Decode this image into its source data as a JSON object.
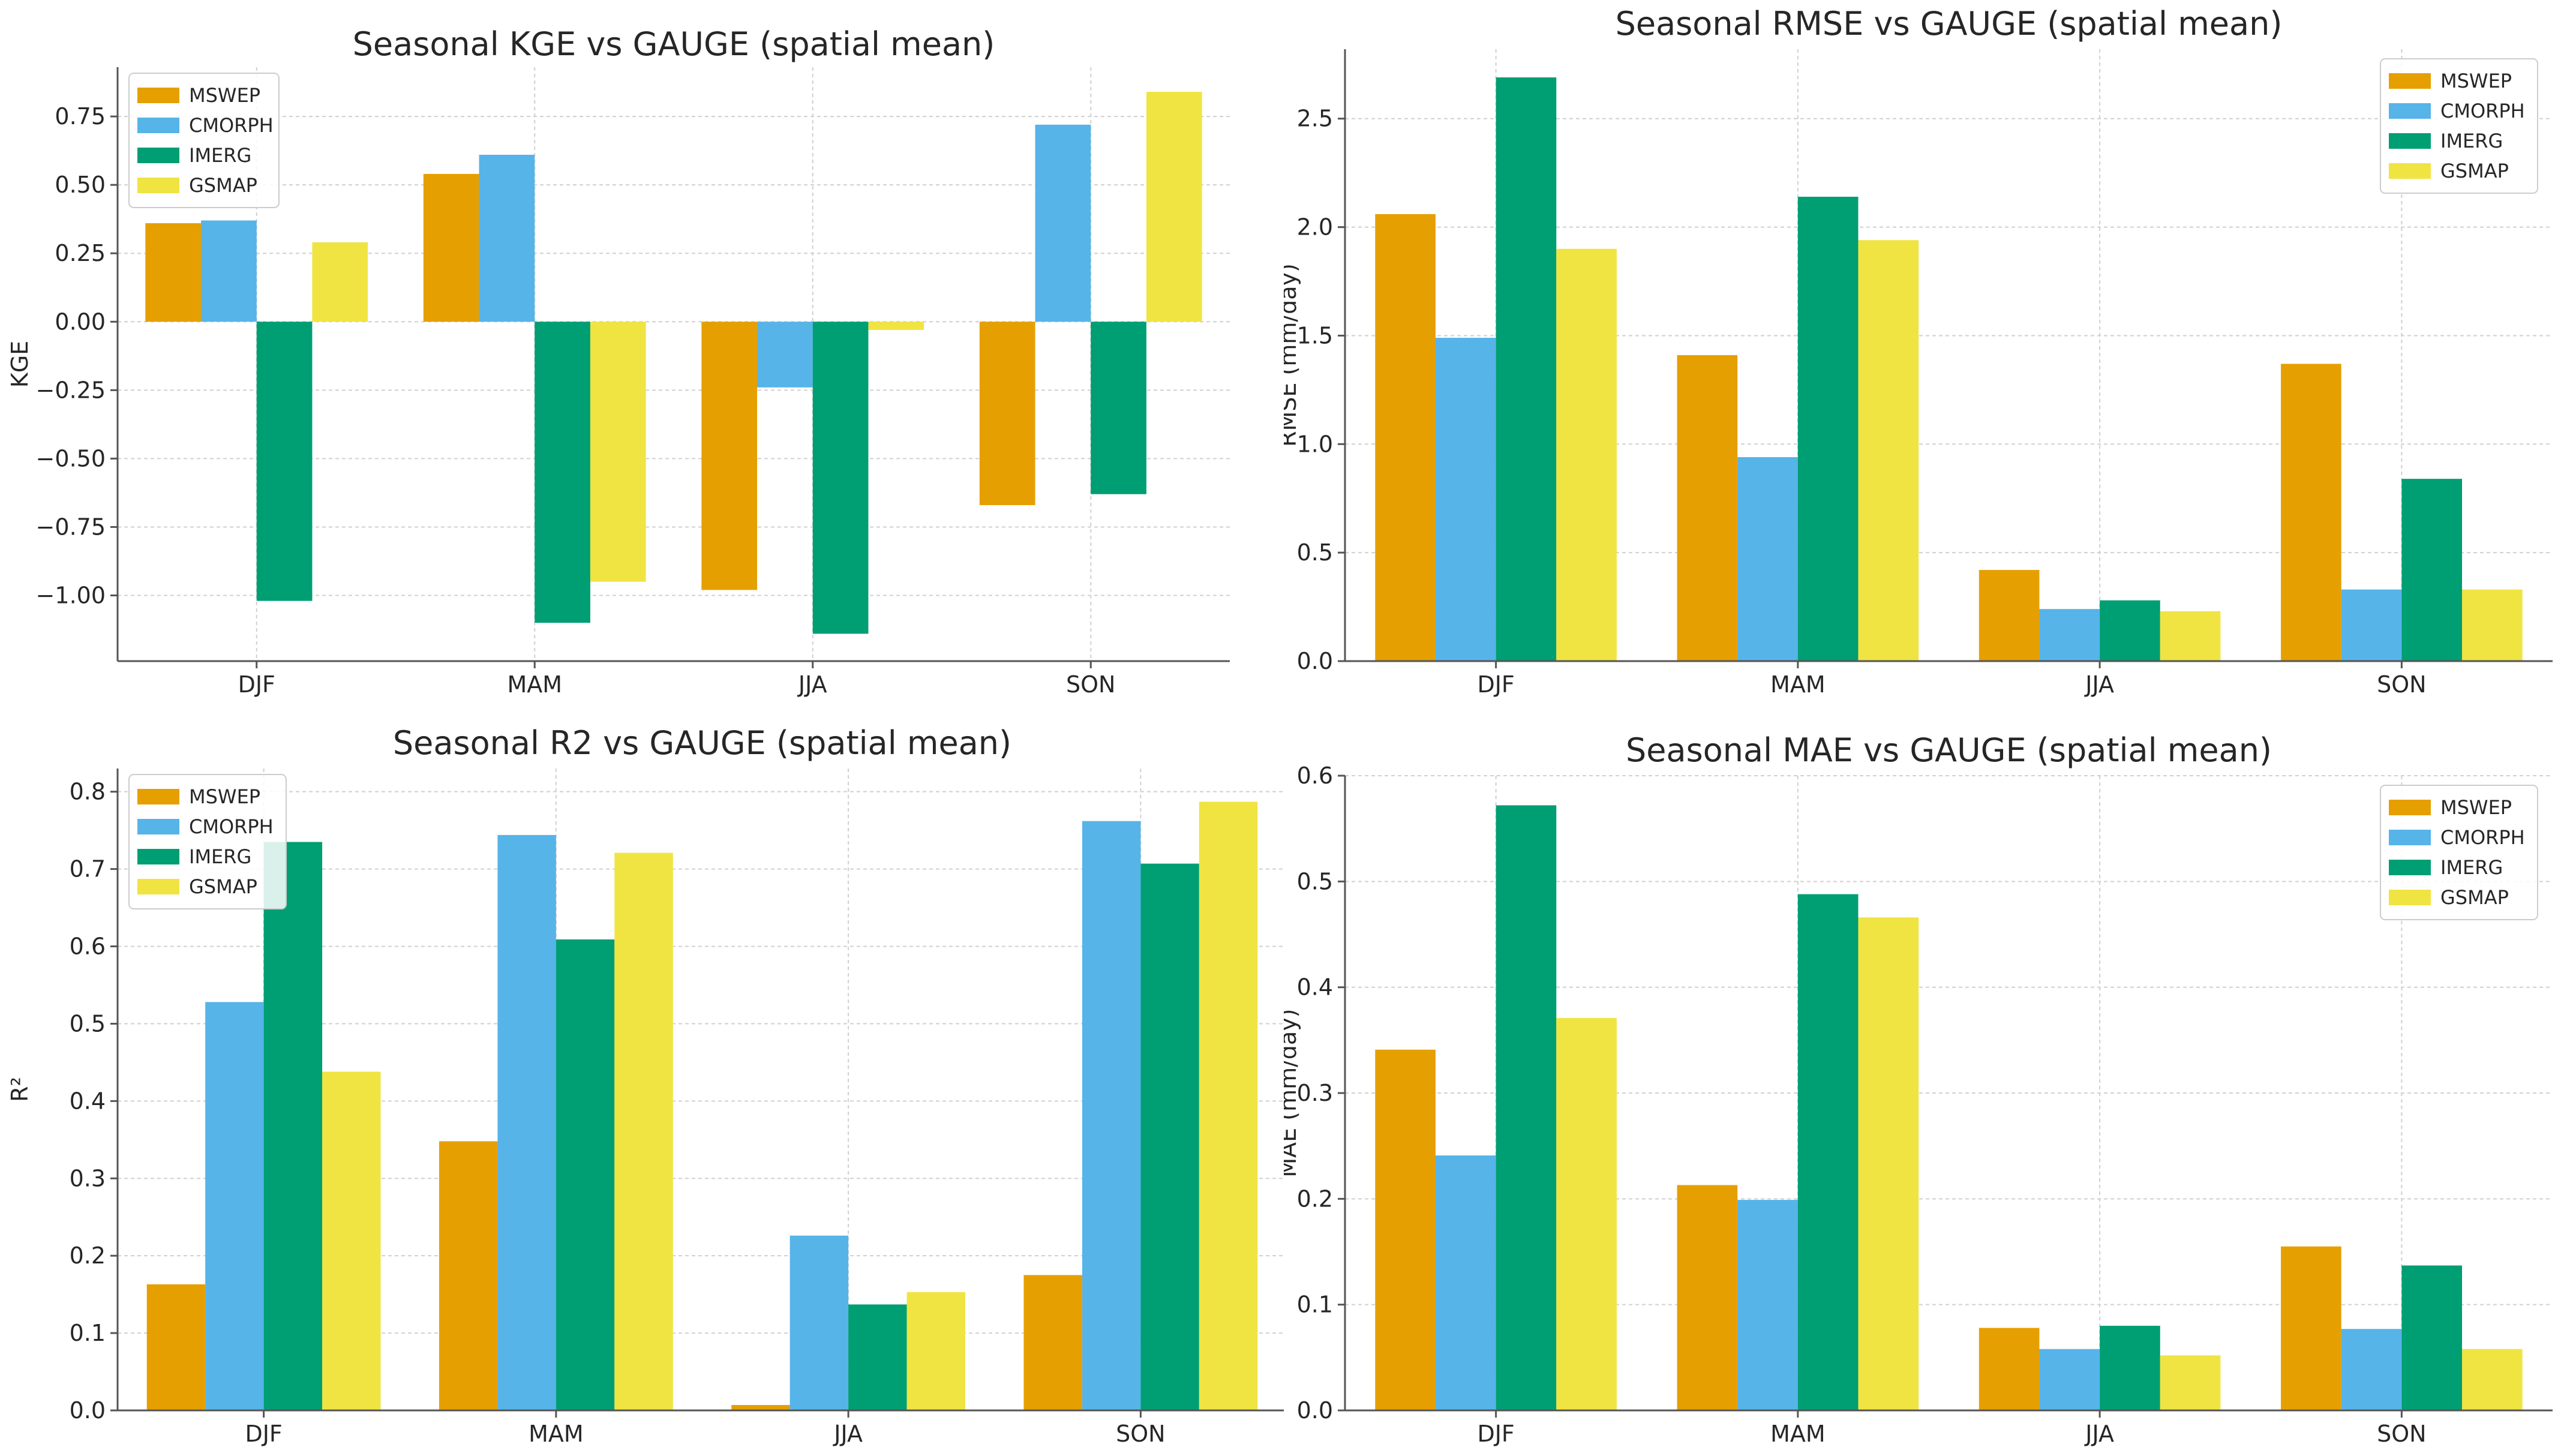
{
  "colors": {
    "MSWEP": "#E69F00",
    "CMORPH": "#56B4E9",
    "IMERG": "#009E73",
    "GSMAP": "#F0E442",
    "grid": "#d0d0d0",
    "axis": "#555555"
  },
  "chart_data": [
    {
      "id": "kge",
      "type": "bar",
      "title": "Seasonal KGE vs GAUGE (spatial mean)",
      "xlabel": "",
      "ylabel": "KGE",
      "categories": [
        "DJF",
        "MAM",
        "JJA",
        "SON"
      ],
      "ylim": [
        -1.24,
        0.93
      ],
      "yticks": [
        -1.0,
        -0.75,
        -0.5,
        -0.25,
        0.0,
        0.25,
        0.5,
        0.75
      ],
      "ytick_labels": [
        "−1.00",
        "−0.75",
        "−0.50",
        "−0.25",
        "0.00",
        "0.25",
        "0.50",
        "0.75"
      ],
      "legend_position": "top-left",
      "series": [
        {
          "name": "MSWEP",
          "values": [
            0.36,
            0.54,
            -0.98,
            -0.67
          ]
        },
        {
          "name": "CMORPH",
          "values": [
            0.37,
            0.61,
            -0.24,
            0.72
          ]
        },
        {
          "name": "IMERG",
          "values": [
            -1.02,
            -1.1,
            -1.14,
            -0.63
          ]
        },
        {
          "name": "GSMAP",
          "values": [
            0.29,
            -0.95,
            -0.03,
            0.84
          ]
        }
      ]
    },
    {
      "id": "rmse",
      "type": "bar",
      "title": "Seasonal RMSE vs GAUGE (spatial mean)",
      "xlabel": "",
      "ylabel": "RMSE (mm/day)",
      "categories": [
        "DJF",
        "MAM",
        "JJA",
        "SON"
      ],
      "ylim": [
        0,
        2.82
      ],
      "yticks": [
        0.0,
        0.5,
        1.0,
        1.5,
        2.0,
        2.5
      ],
      "ytick_labels": [
        "0.0",
        "0.5",
        "1.0",
        "1.5",
        "2.0",
        "2.5"
      ],
      "legend_position": "top-right",
      "series": [
        {
          "name": "MSWEP",
          "values": [
            2.06,
            1.41,
            0.42,
            1.37
          ]
        },
        {
          "name": "CMORPH",
          "values": [
            1.49,
            0.94,
            0.24,
            0.33
          ]
        },
        {
          "name": "IMERG",
          "values": [
            2.69,
            2.14,
            0.28,
            0.84
          ]
        },
        {
          "name": "GSMAP",
          "values": [
            1.9,
            1.94,
            0.23,
            0.33
          ]
        }
      ]
    },
    {
      "id": "r2",
      "type": "bar",
      "title": "Seasonal R2 vs GAUGE (spatial mean)",
      "xlabel": "",
      "ylabel": "R²",
      "categories": [
        "DJF",
        "MAM",
        "JJA",
        "SON"
      ],
      "ylim": [
        0,
        0.83
      ],
      "yticks": [
        0.0,
        0.1,
        0.2,
        0.3,
        0.4,
        0.5,
        0.6,
        0.7,
        0.8
      ],
      "ytick_labels": [
        "0.0",
        "0.1",
        "0.2",
        "0.3",
        "0.4",
        "0.5",
        "0.6",
        "0.7",
        "0.8"
      ],
      "legend_position": "top-left",
      "series": [
        {
          "name": "MSWEP",
          "values": [
            0.163,
            0.348,
            0.007,
            0.175
          ]
        },
        {
          "name": "CMORPH",
          "values": [
            0.528,
            0.744,
            0.226,
            0.762
          ]
        },
        {
          "name": "IMERG",
          "values": [
            0.735,
            0.609,
            0.137,
            0.707
          ]
        },
        {
          "name": "GSMAP",
          "values": [
            0.438,
            0.721,
            0.153,
            0.787
          ]
        }
      ]
    },
    {
      "id": "mae",
      "type": "bar",
      "title": "Seasonal MAE vs GAUGE (spatial mean)",
      "xlabel": "",
      "ylabel": "MAE (mm/day)",
      "categories": [
        "DJF",
        "MAM",
        "JJA",
        "SON"
      ],
      "ylim": [
        0,
        0.6
      ],
      "yticks": [
        0.0,
        0.1,
        0.2,
        0.3,
        0.4,
        0.5,
        0.6
      ],
      "ytick_labels": [
        "0.0",
        "0.1",
        "0.2",
        "0.3",
        "0.4",
        "0.5",
        "0.6"
      ],
      "legend_position": "top-right",
      "series": [
        {
          "name": "MSWEP",
          "values": [
            0.341,
            0.213,
            0.078,
            0.155
          ]
        },
        {
          "name": "CMORPH",
          "values": [
            0.241,
            0.199,
            0.058,
            0.077
          ]
        },
        {
          "name": "IMERG",
          "values": [
            0.572,
            0.488,
            0.08,
            0.137
          ]
        },
        {
          "name": "GSMAP",
          "values": [
            0.371,
            0.466,
            0.052,
            0.058
          ]
        }
      ]
    }
  ]
}
